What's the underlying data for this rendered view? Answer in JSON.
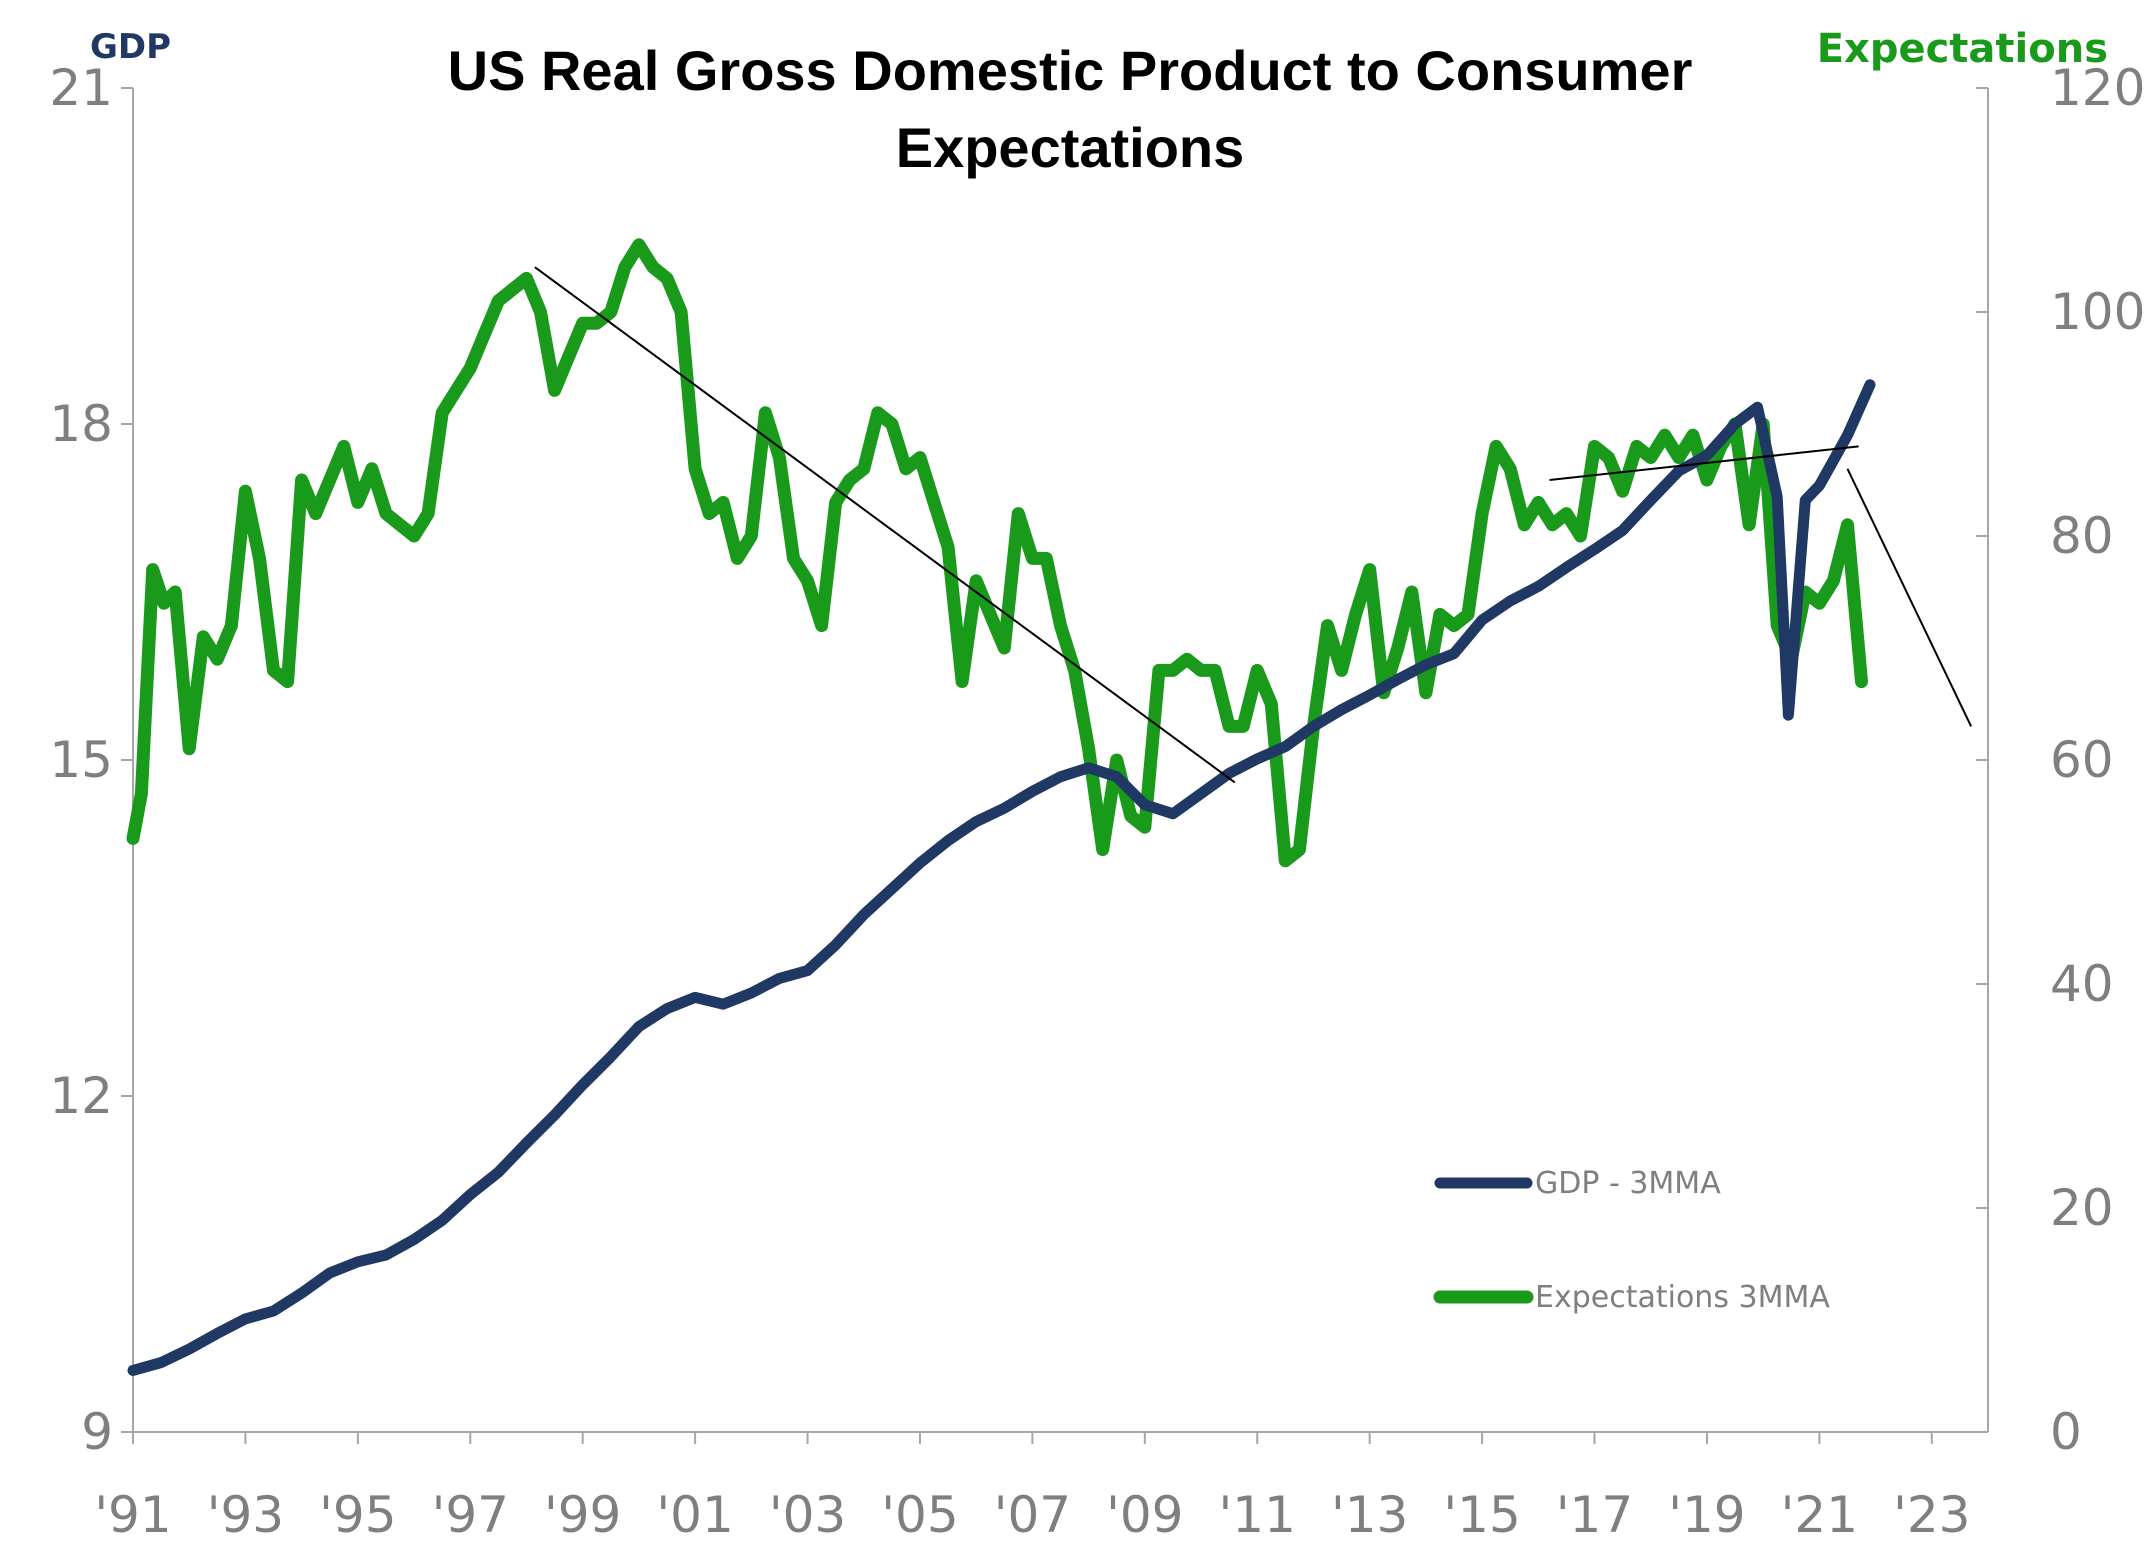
{
  "chart_data": {
    "type": "line",
    "title_line1": "US Real Gross Domestic Product to Consumer",
    "title_line2": "Expectations",
    "left_axis_label": "GDP",
    "right_axis_label": "Expectations",
    "ylim_left": [
      9,
      21
    ],
    "yticks_left": [
      "9",
      "12",
      "15",
      "18",
      "21"
    ],
    "ylim_right": [
      0,
      120
    ],
    "yticks_right": [
      "0",
      "20",
      "40",
      "60",
      "80",
      "100",
      "120"
    ],
    "xlim": [
      1991,
      2024
    ],
    "xticks": [
      "'91",
      "'93",
      "'95",
      "'97",
      "'99",
      "'01",
      "'03",
      "'05",
      "'07",
      "'09",
      "'11",
      "'13",
      "'15",
      "'17",
      "'19",
      "'21",
      "'23"
    ],
    "colors": {
      "gdp": "#1f3864",
      "expectations": "#1a9a1a",
      "trend": "#000000",
      "axis": "#a6a6a6"
    },
    "series": [
      {
        "name": "GDP - 3MMA",
        "axis": "left",
        "points": [
          [
            1991.0,
            9.55
          ],
          [
            1991.5,
            9.62
          ],
          [
            1992.0,
            9.74
          ],
          [
            1992.5,
            9.88
          ],
          [
            1993.0,
            10.01
          ],
          [
            1993.5,
            10.08
          ],
          [
            1994.0,
            10.24
          ],
          [
            1994.5,
            10.42
          ],
          [
            1995.0,
            10.52
          ],
          [
            1995.5,
            10.58
          ],
          [
            1996.0,
            10.72
          ],
          [
            1996.5,
            10.89
          ],
          [
            1997.0,
            11.12
          ],
          [
            1997.5,
            11.32
          ],
          [
            1998.0,
            11.58
          ],
          [
            1998.5,
            11.83
          ],
          [
            1999.0,
            12.1
          ],
          [
            1999.5,
            12.35
          ],
          [
            2000.0,
            12.62
          ],
          [
            2000.5,
            12.78
          ],
          [
            2001.0,
            12.88
          ],
          [
            2001.5,
            12.82
          ],
          [
            2002.0,
            12.92
          ],
          [
            2002.5,
            13.05
          ],
          [
            2003.0,
            13.12
          ],
          [
            2003.5,
            13.35
          ],
          [
            2004.0,
            13.62
          ],
          [
            2004.5,
            13.85
          ],
          [
            2005.0,
            14.08
          ],
          [
            2005.5,
            14.28
          ],
          [
            2006.0,
            14.45
          ],
          [
            2006.5,
            14.57
          ],
          [
            2007.0,
            14.72
          ],
          [
            2007.5,
            14.85
          ],
          [
            2008.0,
            14.93
          ],
          [
            2008.5,
            14.85
          ],
          [
            2009.0,
            14.6
          ],
          [
            2009.5,
            14.52
          ],
          [
            2010.0,
            14.7
          ],
          [
            2010.5,
            14.88
          ],
          [
            2011.0,
            15.01
          ],
          [
            2011.5,
            15.12
          ],
          [
            2012.0,
            15.3
          ],
          [
            2012.5,
            15.45
          ],
          [
            2013.0,
            15.58
          ],
          [
            2013.5,
            15.72
          ],
          [
            2014.0,
            15.85
          ],
          [
            2014.5,
            15.95
          ],
          [
            2015.0,
            16.25
          ],
          [
            2015.5,
            16.42
          ],
          [
            2016.0,
            16.55
          ],
          [
            2016.5,
            16.72
          ],
          [
            2017.0,
            16.88
          ],
          [
            2017.5,
            17.05
          ],
          [
            2018.0,
            17.32
          ],
          [
            2018.5,
            17.58
          ],
          [
            2019.0,
            17.72
          ],
          [
            2019.5,
            18.0
          ],
          [
            2019.9,
            18.15
          ],
          [
            2020.25,
            17.35
          ],
          [
            2020.45,
            15.4
          ],
          [
            2020.75,
            17.32
          ],
          [
            2021.0,
            17.45
          ],
          [
            2021.5,
            17.9
          ],
          [
            2021.9,
            18.35
          ]
        ]
      },
      {
        "name": "Expectations 3MMA",
        "axis": "right",
        "points": [
          [
            1991.0,
            53
          ],
          [
            1991.15,
            57
          ],
          [
            1991.35,
            77
          ],
          [
            1991.55,
            74
          ],
          [
            1991.75,
            75
          ],
          [
            1992.0,
            61
          ],
          [
            1992.25,
            71
          ],
          [
            1992.5,
            69
          ],
          [
            1992.75,
            72
          ],
          [
            1993.0,
            84
          ],
          [
            1993.25,
            78
          ],
          [
            1993.5,
            68
          ],
          [
            1993.75,
            67
          ],
          [
            1994.0,
            85
          ],
          [
            1994.25,
            82
          ],
          [
            1994.5,
            85
          ],
          [
            1994.75,
            88
          ],
          [
            1995.0,
            83
          ],
          [
            1995.25,
            86
          ],
          [
            1995.5,
            82
          ],
          [
            1995.75,
            81
          ],
          [
            1996.0,
            80
          ],
          [
            1996.25,
            82
          ],
          [
            1996.5,
            91
          ],
          [
            1996.75,
            93
          ],
          [
            1997.0,
            95
          ],
          [
            1997.25,
            98
          ],
          [
            1997.5,
            101
          ],
          [
            1997.75,
            102
          ],
          [
            1998.0,
            103
          ],
          [
            1998.25,
            100
          ],
          [
            1998.5,
            93
          ],
          [
            1998.75,
            96
          ],
          [
            1999.0,
            99
          ],
          [
            1999.25,
            99
          ],
          [
            1999.5,
            100
          ],
          [
            1999.75,
            104
          ],
          [
            2000.0,
            106
          ],
          [
            2000.25,
            104
          ],
          [
            2000.5,
            103
          ],
          [
            2000.75,
            100
          ],
          [
            2001.0,
            86
          ],
          [
            2001.25,
            82
          ],
          [
            2001.5,
            83
          ],
          [
            2001.75,
            78
          ],
          [
            2002.0,
            80
          ],
          [
            2002.25,
            91
          ],
          [
            2002.5,
            87
          ],
          [
            2002.75,
            78
          ],
          [
            2003.0,
            76
          ],
          [
            2003.25,
            72
          ],
          [
            2003.5,
            83
          ],
          [
            2003.75,
            85
          ],
          [
            2004.0,
            86
          ],
          [
            2004.25,
            91
          ],
          [
            2004.5,
            90
          ],
          [
            2004.75,
            86
          ],
          [
            2005.0,
            87
          ],
          [
            2005.25,
            83
          ],
          [
            2005.5,
            79
          ],
          [
            2005.75,
            67
          ],
          [
            2006.0,
            76
          ],
          [
            2006.25,
            73
          ],
          [
            2006.5,
            70
          ],
          [
            2006.75,
            82
          ],
          [
            2007.0,
            78
          ],
          [
            2007.25,
            78
          ],
          [
            2007.5,
            72
          ],
          [
            2007.75,
            68
          ],
          [
            2008.0,
            61
          ],
          [
            2008.25,
            52
          ],
          [
            2008.5,
            60
          ],
          [
            2008.75,
            55
          ],
          [
            2009.0,
            54
          ],
          [
            2009.25,
            68
          ],
          [
            2009.5,
            68
          ],
          [
            2009.75,
            69
          ],
          [
            2010.0,
            68
          ],
          [
            2010.25,
            68
          ],
          [
            2010.5,
            63
          ],
          [
            2010.75,
            63
          ],
          [
            2011.0,
            68
          ],
          [
            2011.25,
            65
          ],
          [
            2011.5,
            51
          ],
          [
            2011.75,
            52
          ],
          [
            2012.0,
            63
          ],
          [
            2012.25,
            72
          ],
          [
            2012.5,
            68
          ],
          [
            2012.75,
            73
          ],
          [
            2013.0,
            77
          ],
          [
            2013.25,
            66
          ],
          [
            2013.5,
            70
          ],
          [
            2013.75,
            75
          ],
          [
            2014.0,
            66
          ],
          [
            2014.25,
            73
          ],
          [
            2014.5,
            72
          ],
          [
            2014.75,
            73
          ],
          [
            2015.0,
            82
          ],
          [
            2015.25,
            88
          ],
          [
            2015.5,
            86
          ],
          [
            2015.75,
            81
          ],
          [
            2016.0,
            83
          ],
          [
            2016.25,
            81
          ],
          [
            2016.5,
            82
          ],
          [
            2016.75,
            80
          ],
          [
            2017.0,
            88
          ],
          [
            2017.25,
            87
          ],
          [
            2017.5,
            84
          ],
          [
            2017.75,
            88
          ],
          [
            2018.0,
            87
          ],
          [
            2018.25,
            89
          ],
          [
            2018.5,
            87
          ],
          [
            2018.75,
            89
          ],
          [
            2019.0,
            85
          ],
          [
            2019.25,
            88
          ],
          [
            2019.5,
            90
          ],
          [
            2019.75,
            81
          ],
          [
            2020.0,
            90
          ],
          [
            2020.25,
            72
          ],
          [
            2020.5,
            69
          ],
          [
            2020.75,
            75
          ],
          [
            2021.0,
            74
          ],
          [
            2021.25,
            76
          ],
          [
            2021.5,
            81
          ],
          [
            2021.75,
            67
          ]
        ]
      }
    ],
    "trend_lines": [
      {
        "axis": "right",
        "from": [
          1998.15,
          104
        ],
        "to": [
          2010.6,
          58
        ]
      },
      {
        "axis": "right",
        "from": [
          2016.2,
          85
        ],
        "to": [
          2021.7,
          88
        ]
      },
      {
        "axis": "right",
        "from": [
          2021.5,
          86
        ],
        "to": [
          2023.7,
          63
        ]
      }
    ],
    "legend": {
      "position": "bottom-right"
    }
  }
}
